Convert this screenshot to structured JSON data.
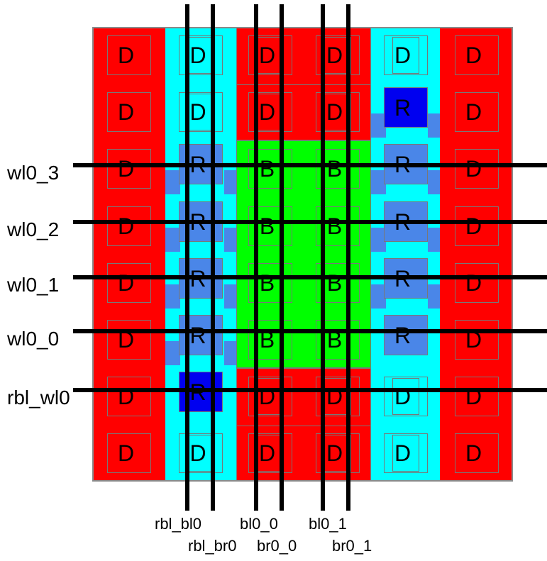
{
  "colors": {
    "background": "#ffffff",
    "dummy_red": "#ff0000",
    "replica_cyan": "#00ffff",
    "bitcell_green": "#00ff00",
    "replica_blue_light": "#4a86e8",
    "replica_blue_dark": "#0000f0",
    "cell_outline_gray": "#787878",
    "array_border_gray": "#8a8a8a",
    "signal_line_black": "#000000",
    "label_text_black": "#000000"
  },
  "wordlines": [
    {
      "label": "wl0_3"
    },
    {
      "label": "wl0_2"
    },
    {
      "label": "wl0_1"
    },
    {
      "label": "wl0_0"
    },
    {
      "label": "rbl_wl0"
    }
  ],
  "bitlines": [
    {
      "label": "rbl_bl0"
    },
    {
      "label": "rbl_br0"
    },
    {
      "label": "bl0_0"
    },
    {
      "label": "br0_0"
    },
    {
      "label": "bl0_1"
    },
    {
      "label": "br0_1"
    }
  ],
  "cell_kinds": {
    "d1": "dummy-cell",
    "d2": "dummy-cell-nested",
    "b": "bitcell",
    "rl": "replica-cell-light",
    "rd": "replica-cell-dark"
  },
  "grid": {
    "rows": [
      {
        "cells": [
          {
            "t": "D",
            "k": "d1"
          },
          {
            "t": "D",
            "k": "d2"
          },
          {
            "t": "D",
            "k": "d2"
          },
          {
            "t": "D",
            "k": "d2"
          },
          {
            "t": "D",
            "k": "d2"
          },
          {
            "t": "D",
            "k": "d1"
          }
        ]
      },
      {
        "cells": [
          {
            "t": "D",
            "k": "d1"
          },
          {
            "t": "D",
            "k": "d2"
          },
          {
            "t": "D",
            "k": "d2"
          },
          {
            "t": "D",
            "k": "d2"
          },
          {
            "t": "R",
            "k": "rd",
            "tab": true
          },
          {
            "t": "D",
            "k": "d1"
          }
        ]
      },
      {
        "cells": [
          {
            "t": "D",
            "k": "d1"
          },
          {
            "t": "R",
            "k": "rl",
            "tab": true
          },
          {
            "t": "B",
            "k": "b"
          },
          {
            "t": "B",
            "k": "b"
          },
          {
            "t": "R",
            "k": "rl",
            "tab": true
          },
          {
            "t": "D",
            "k": "d1"
          }
        ]
      },
      {
        "cells": [
          {
            "t": "D",
            "k": "d1"
          },
          {
            "t": "R",
            "k": "rl",
            "tab": true
          },
          {
            "t": "B",
            "k": "b"
          },
          {
            "t": "B",
            "k": "b"
          },
          {
            "t": "R",
            "k": "rl",
            "tab": true
          },
          {
            "t": "D",
            "k": "d1"
          }
        ]
      },
      {
        "cells": [
          {
            "t": "D",
            "k": "d1"
          },
          {
            "t": "R",
            "k": "rl",
            "tab": true
          },
          {
            "t": "B",
            "k": "b"
          },
          {
            "t": "B",
            "k": "b"
          },
          {
            "t": "R",
            "k": "rl",
            "tab": true
          },
          {
            "t": "D",
            "k": "d1"
          }
        ]
      },
      {
        "cells": [
          {
            "t": "D",
            "k": "d1"
          },
          {
            "t": "R",
            "k": "rl",
            "tab": true
          },
          {
            "t": "B",
            "k": "b"
          },
          {
            "t": "B",
            "k": "b"
          },
          {
            "t": "R",
            "k": "rl"
          },
          {
            "t": "D",
            "k": "d1"
          }
        ]
      },
      {
        "cells": [
          {
            "t": "D",
            "k": "d1"
          },
          {
            "t": "R",
            "k": "rd"
          },
          {
            "t": "D",
            "k": "d2"
          },
          {
            "t": "D",
            "k": "d2"
          },
          {
            "t": "D",
            "k": "d2"
          },
          {
            "t": "D",
            "k": "d1"
          }
        ]
      },
      {
        "cells": [
          {
            "t": "D",
            "k": "d1"
          },
          {
            "t": "D",
            "k": "d2"
          },
          {
            "t": "D",
            "k": "d2"
          },
          {
            "t": "D",
            "k": "d2"
          },
          {
            "t": "D",
            "k": "d2"
          },
          {
            "t": "D",
            "k": "d1"
          }
        ]
      }
    ]
  }
}
